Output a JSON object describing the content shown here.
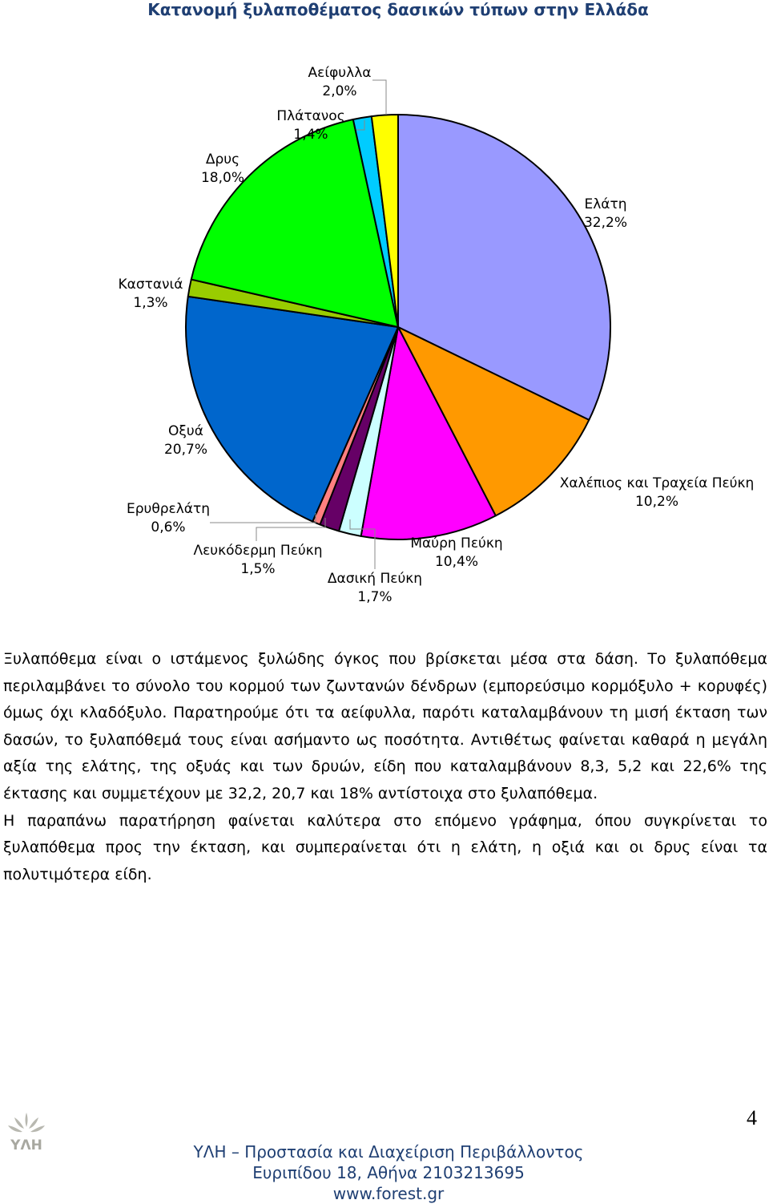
{
  "page": {
    "title": "Κατανομή ξυλαποθέματος δασικών τύπων στην Ελλάδα",
    "body_paragraphs": [
      "Ξυλαπόθεμα είναι ο ιστάμενος ξυλώδης όγκος που βρίσκεται μέσα στα δάση. Το ξυλαπόθεμα περιλαμβάνει το σύνολο του κορμού των ζωντανών δένδρων (εμπορεύσιμο κορμόξυλο + κορυφές) όμως όχι κλαδόξυλο. Παρατηρούμε ότι τα αείφυλλα, παρότι καταλαμβάνουν τη μισή έκταση των δασών, το ξυλαπόθεμά τους είναι ασήμαντο ως ποσότητα. Αντιθέτως φαίνεται καθαρά η μεγάλη αξία της ελάτης, της οξυάς και των δρυών, είδη που καταλαμβάνουν 8,3, 5,2 και 22,6% της έκτασης και συμμετέχουν με 32,2, 20,7 και 18% αντίστοιχα στο ξυλαπόθεμα.",
      "Η παραπάνω παρατήρηση φαίνεται καλύτερα στο επόμενο γράφημα, όπου συγκρίνεται το ξυλαπόθεμα προς την έκταση, και συμπεραίνεται ότι η ελάτη, η οξιά και οι δρυς είναι τα πολυτιμότερα είδη."
    ],
    "page_number": "4",
    "logo_text": "ΥΛΗ",
    "footer": {
      "line1": "ΥΛΗ – Προστασία και Διαχείριση Περιβάλλοντος",
      "line2": "Ευριπίδου 18, Αθήνα 2103213695",
      "line3": "www.forest.gr"
    }
  },
  "chart_data": {
    "type": "pie",
    "title": "Κατανομή ξυλαποθέματος δασικών τύπων στην Ελλάδα",
    "start_angle_deg": 0,
    "direction": "clockwise",
    "slices": [
      {
        "label": "Ελάτη",
        "value": 32.2,
        "value_text": "32,2%",
        "color": "#9999ff"
      },
      {
        "label": "Χαλέπιος και Τραχεία Πεύκη",
        "value": 10.2,
        "value_text": "10,2%",
        "color": "#ff9900"
      },
      {
        "label": "Μαύρη Πεύκη",
        "value": 10.4,
        "value_text": "10,4%",
        "color": "#ff00ff"
      },
      {
        "label": "Δασική Πεύκη",
        "value": 1.7,
        "value_text": "1,7%",
        "color": "#ccffff"
      },
      {
        "label": "Λευκόδερμη Πεύκη",
        "value": 1.5,
        "value_text": "1,5%",
        "color": "#660066"
      },
      {
        "label": "Ερυθρελάτη",
        "value": 0.6,
        "value_text": "0,6%",
        "color": "#ff8080"
      },
      {
        "label": "Οξυά",
        "value": 20.7,
        "value_text": "20,7%",
        "color": "#0066cc"
      },
      {
        "label": "Καστανιά",
        "value": 1.3,
        "value_text": "1,3%",
        "color": "#99cc00"
      },
      {
        "label": "Δρυς",
        "value": 18.0,
        "value_text": "18,0%",
        "color": "#00ff00"
      },
      {
        "label": "Πλάτανος",
        "value": 1.4,
        "value_text": "1,4%",
        "color": "#00ccff"
      },
      {
        "label": "Αείφυλλα",
        "value": 2.0,
        "value_text": "2,0%",
        "color": "#ffff00"
      }
    ],
    "legend": "none",
    "data_labels": "outside with leader lines"
  }
}
